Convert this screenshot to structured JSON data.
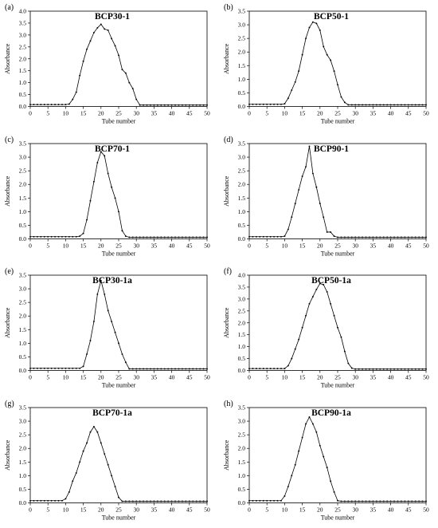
{
  "chart_data": [
    {
      "type": "line",
      "panel_label": "(a)",
      "title": "BCP30-1",
      "xlabel": "Tube number",
      "ylabel": "Absorbance",
      "xlim": [
        0,
        50
      ],
      "ylim": [
        0,
        4.0
      ],
      "x_ticks": [
        "0",
        "5",
        "10",
        "15",
        "20",
        "25",
        "30",
        "35",
        "40",
        "45",
        "50"
      ],
      "y_ticks": [
        "0.0",
        "0.5",
        "1.0",
        "1.5",
        "2.0",
        "2.5",
        "3.0",
        "3.5",
        "4.0"
      ],
      "x": [
        0,
        1,
        2,
        3,
        4,
        5,
        6,
        7,
        8,
        9,
        10,
        11,
        12,
        13,
        14,
        15,
        16,
        17,
        18,
        19,
        20,
        21,
        22,
        23,
        24,
        25,
        26,
        27,
        28,
        29,
        30,
        31,
        32,
        33,
        34,
        35,
        36,
        37,
        38,
        39,
        40,
        41,
        42,
        43,
        44,
        45,
        46,
        47,
        48,
        49,
        50
      ],
      "values": [
        0.08,
        0.08,
        0.08,
        0.08,
        0.08,
        0.08,
        0.08,
        0.08,
        0.08,
        0.08,
        0.08,
        0.1,
        0.3,
        0.6,
        1.3,
        1.9,
        2.4,
        2.75,
        3.1,
        3.3,
        3.45,
        3.25,
        3.2,
        2.85,
        2.55,
        2.15,
        1.55,
        1.4,
        1.0,
        0.75,
        0.3,
        0.06,
        0.06,
        0.06,
        0.06,
        0.06,
        0.06,
        0.06,
        0.06,
        0.06,
        0.06,
        0.06,
        0.06,
        0.06,
        0.06,
        0.06,
        0.06,
        0.06,
        0.06,
        0.06,
        0.06
      ]
    },
    {
      "type": "line",
      "panel_label": "(b)",
      "title": "BCP50-1",
      "xlabel": "Tube number",
      "ylabel": "Absorbance",
      "xlim": [
        0,
        50
      ],
      "ylim": [
        0,
        3.5
      ],
      "x_ticks": [
        "0",
        "5",
        "10",
        "15",
        "20",
        "25",
        "30",
        "35",
        "40",
        "45",
        "50"
      ],
      "y_ticks": [
        "0.0",
        "0.5",
        "1.0",
        "1.5",
        "2.0",
        "2.5",
        "3.0",
        "3.5"
      ],
      "x": [
        0,
        1,
        2,
        3,
        4,
        5,
        6,
        7,
        8,
        9,
        10,
        11,
        12,
        13,
        14,
        15,
        16,
        17,
        18,
        19,
        20,
        21,
        22,
        23,
        24,
        25,
        26,
        27,
        28,
        29,
        30,
        31,
        32,
        33,
        34,
        35,
        36,
        37,
        38,
        39,
        40,
        41,
        42,
        43,
        44,
        45,
        46,
        47,
        48,
        49,
        50
      ],
      "values": [
        0.08,
        0.08,
        0.08,
        0.08,
        0.08,
        0.08,
        0.08,
        0.08,
        0.08,
        0.08,
        0.1,
        0.3,
        0.6,
        0.9,
        1.3,
        1.9,
        2.5,
        2.9,
        3.1,
        3.05,
        2.8,
        2.2,
        1.9,
        1.7,
        1.3,
        0.8,
        0.35,
        0.15,
        0.06,
        0.06,
        0.06,
        0.06,
        0.06,
        0.06,
        0.06,
        0.06,
        0.06,
        0.06,
        0.06,
        0.06,
        0.06,
        0.06,
        0.06,
        0.06,
        0.06,
        0.06,
        0.06,
        0.06,
        0.06,
        0.06,
        0.06
      ]
    },
    {
      "type": "line",
      "panel_label": "(c)",
      "title": "BCP70-1",
      "xlabel": "Tube number",
      "ylabel": "Absorbance",
      "xlim": [
        0,
        50
      ],
      "ylim": [
        0,
        3.5
      ],
      "x_ticks": [
        "0",
        "5",
        "10",
        "15",
        "20",
        "25",
        "30",
        "35",
        "40",
        "45",
        "50"
      ],
      "y_ticks": [
        "0.0",
        "0.5",
        "1.0",
        "1.5",
        "2.0",
        "2.5",
        "3.0",
        "3.5"
      ],
      "x": [
        0,
        1,
        2,
        3,
        4,
        5,
        6,
        7,
        8,
        9,
        10,
        11,
        12,
        13,
        14,
        15,
        16,
        17,
        18,
        19,
        20,
        21,
        22,
        23,
        24,
        25,
        26,
        27,
        28,
        29,
        30,
        31,
        32,
        33,
        34,
        35,
        36,
        37,
        38,
        39,
        40,
        41,
        42,
        43,
        44,
        45,
        46,
        47,
        48,
        49,
        50
      ],
      "values": [
        0.08,
        0.08,
        0.08,
        0.08,
        0.08,
        0.08,
        0.08,
        0.08,
        0.08,
        0.08,
        0.08,
        0.08,
        0.08,
        0.08,
        0.1,
        0.2,
        0.7,
        1.4,
        2.1,
        2.8,
        3.2,
        3.05,
        2.4,
        1.9,
        1.5,
        1.0,
        0.3,
        0.1,
        0.06,
        0.06,
        0.06,
        0.06,
        0.06,
        0.06,
        0.06,
        0.06,
        0.06,
        0.06,
        0.06,
        0.06,
        0.06,
        0.06,
        0.06,
        0.06,
        0.06,
        0.06,
        0.06,
        0.06,
        0.06,
        0.06,
        0.06
      ]
    },
    {
      "type": "line",
      "panel_label": "(d)",
      "title": "BCP90-1",
      "xlabel": "Tube number",
      "ylabel": "Absorbance",
      "xlim": [
        0,
        50
      ],
      "ylim": [
        0,
        3.5
      ],
      "x_ticks": [
        "0",
        "5",
        "10",
        "15",
        "20",
        "25",
        "30",
        "35",
        "40",
        "45",
        "50"
      ],
      "y_ticks": [
        "0.0",
        "0.5",
        "1.0",
        "1.5",
        "2.0",
        "2.5",
        "3.0",
        "3.5"
      ],
      "x": [
        0,
        1,
        2,
        3,
        4,
        5,
        6,
        7,
        8,
        9,
        10,
        11,
        12,
        13,
        14,
        15,
        16,
        17,
        18,
        19,
        20,
        21,
        22,
        23,
        24,
        25,
        26,
        27,
        28,
        29,
        30,
        31,
        32,
        33,
        34,
        35,
        36,
        37,
        38,
        39,
        40,
        41,
        42,
        43,
        44,
        45,
        46,
        47,
        48,
        49,
        50
      ],
      "values": [
        0.08,
        0.08,
        0.08,
        0.08,
        0.08,
        0.08,
        0.08,
        0.08,
        0.08,
        0.08,
        0.1,
        0.35,
        0.8,
        1.3,
        1.8,
        2.3,
        2.65,
        3.4,
        2.4,
        1.9,
        1.3,
        0.8,
        0.25,
        0.25,
        0.1,
        0.06,
        0.06,
        0.06,
        0.06,
        0.06,
        0.06,
        0.06,
        0.06,
        0.06,
        0.06,
        0.06,
        0.06,
        0.06,
        0.06,
        0.06,
        0.06,
        0.06,
        0.06,
        0.06,
        0.06,
        0.06,
        0.06,
        0.06,
        0.06,
        0.06,
        0.06
      ]
    },
    {
      "type": "line",
      "panel_label": "(e)",
      "title": "BCP30-1a",
      "xlabel": "Tube number",
      "ylabel": "Absorbance",
      "xlim": [
        0,
        50
      ],
      "ylim": [
        0,
        3.5
      ],
      "x_ticks": [
        "0",
        "5",
        "10",
        "15",
        "20",
        "25",
        "30",
        "35",
        "40",
        "45",
        "50"
      ],
      "y_ticks": [
        "0.0",
        "0.5",
        "1.0",
        "1.5",
        "2.0",
        "2.5",
        "3.0",
        "3.5"
      ],
      "x": [
        0,
        1,
        2,
        3,
        4,
        5,
        6,
        7,
        8,
        9,
        10,
        11,
        12,
        13,
        14,
        15,
        16,
        17,
        18,
        19,
        20,
        21,
        22,
        23,
        24,
        25,
        26,
        27,
        28,
        29,
        30,
        31,
        32,
        33,
        34,
        35,
        36,
        37,
        38,
        39,
        40,
        41,
        42,
        43,
        44,
        45,
        46,
        47,
        48,
        49,
        50
      ],
      "values": [
        0.08,
        0.08,
        0.08,
        0.08,
        0.08,
        0.08,
        0.08,
        0.08,
        0.08,
        0.08,
        0.08,
        0.08,
        0.08,
        0.08,
        0.08,
        0.15,
        0.6,
        1.1,
        1.8,
        2.8,
        3.3,
        2.8,
        2.2,
        1.8,
        1.4,
        1.0,
        0.6,
        0.3,
        0.06,
        0.06,
        0.06,
        0.06,
        0.06,
        0.06,
        0.06,
        0.06,
        0.06,
        0.06,
        0.06,
        0.06,
        0.06,
        0.06,
        0.06,
        0.06,
        0.06,
        0.06,
        0.06,
        0.06,
        0.06,
        0.06,
        0.06
      ]
    },
    {
      "type": "line",
      "panel_label": "(f)",
      "title": "BCP50-1a",
      "xlabel": "Tube number",
      "ylabel": "Absorbance",
      "xlim": [
        0,
        50
      ],
      "ylim": [
        0,
        4.0
      ],
      "x_ticks": [
        "0",
        "5",
        "10",
        "15",
        "20",
        "25",
        "30",
        "35",
        "40",
        "45",
        "50"
      ],
      "y_ticks": [
        "0.0",
        "0.5",
        "1.0",
        "1.5",
        "2.0",
        "2.5",
        "3.0",
        "3.5",
        "4.0"
      ],
      "x": [
        0,
        1,
        2,
        3,
        4,
        5,
        6,
        7,
        8,
        9,
        10,
        11,
        12,
        13,
        14,
        15,
        16,
        17,
        18,
        19,
        20,
        21,
        22,
        23,
        24,
        25,
        26,
        27,
        28,
        29,
        30,
        31,
        32,
        33,
        34,
        35,
        36,
        37,
        38,
        39,
        40,
        41,
        42,
        43,
        44,
        45,
        46,
        47,
        48,
        49,
        50
      ],
      "values": [
        0.08,
        0.08,
        0.08,
        0.08,
        0.08,
        0.08,
        0.08,
        0.08,
        0.08,
        0.08,
        0.08,
        0.2,
        0.5,
        0.9,
        1.3,
        1.8,
        2.3,
        2.8,
        3.1,
        3.4,
        3.65,
        3.6,
        3.3,
        2.8,
        2.3,
        1.8,
        1.4,
        0.8,
        0.3,
        0.1,
        0.06,
        0.06,
        0.06,
        0.06,
        0.06,
        0.06,
        0.06,
        0.06,
        0.06,
        0.06,
        0.06,
        0.06,
        0.06,
        0.06,
        0.06,
        0.06,
        0.06,
        0.06,
        0.06,
        0.06,
        0.06
      ]
    },
    {
      "type": "line",
      "panel_label": "(g)",
      "title": "BCP70-1a",
      "xlabel": "Tube number",
      "ylabel": "Absorbance",
      "xlim": [
        0,
        50
      ],
      "ylim": [
        0,
        3.5
      ],
      "x_ticks": [
        "0",
        "5",
        "10",
        "15",
        "20",
        "25",
        "30",
        "35",
        "40",
        "45",
        "50"
      ],
      "y_ticks": [
        "0.0",
        "0.5",
        "1.0",
        "1.5",
        "2.0",
        "2.5",
        "3.0",
        "3.5"
      ],
      "x": [
        0,
        1,
        2,
        3,
        4,
        5,
        6,
        7,
        8,
        9,
        10,
        11,
        12,
        13,
        14,
        15,
        16,
        17,
        18,
        19,
        20,
        21,
        22,
        23,
        24,
        25,
        26,
        27,
        28,
        29,
        30,
        31,
        32,
        33,
        34,
        35,
        36,
        37,
        38,
        39,
        40,
        41,
        42,
        43,
        44,
        45,
        46,
        47,
        48,
        49,
        50
      ],
      "values": [
        0.08,
        0.08,
        0.08,
        0.08,
        0.08,
        0.08,
        0.08,
        0.08,
        0.08,
        0.08,
        0.15,
        0.4,
        0.8,
        1.1,
        1.5,
        1.9,
        2.2,
        2.6,
        2.8,
        2.6,
        2.2,
        1.8,
        1.4,
        1.0,
        0.6,
        0.2,
        0.06,
        0.06,
        0.06,
        0.06,
        0.06,
        0.06,
        0.06,
        0.06,
        0.06,
        0.06,
        0.06,
        0.06,
        0.06,
        0.06,
        0.06,
        0.06,
        0.06,
        0.06,
        0.06,
        0.06,
        0.06,
        0.06,
        0.06,
        0.06,
        0.06
      ]
    },
    {
      "type": "line",
      "panel_label": "(h)",
      "title": "BCP90-1a",
      "xlabel": "Tube number",
      "ylabel": "Absorbance",
      "xlim": [
        0,
        50
      ],
      "ylim": [
        0,
        3.5
      ],
      "x_ticks": [
        "0",
        "5",
        "10",
        "15",
        "20",
        "25",
        "30",
        "35",
        "40",
        "45",
        "50"
      ],
      "y_ticks": [
        "0.0",
        "0.5",
        "1.0",
        "1.5",
        "2.0",
        "2.5",
        "3.0",
        "3.5"
      ],
      "x": [
        0,
        1,
        2,
        3,
        4,
        5,
        6,
        7,
        8,
        9,
        10,
        11,
        12,
        13,
        14,
        15,
        16,
        17,
        18,
        19,
        20,
        21,
        22,
        23,
        24,
        25,
        26,
        27,
        28,
        29,
        30,
        31,
        32,
        33,
        34,
        35,
        36,
        37,
        38,
        39,
        40,
        41,
        42,
        43,
        44,
        45,
        46,
        47,
        48,
        49,
        50
      ],
      "values": [
        0.08,
        0.08,
        0.08,
        0.08,
        0.08,
        0.08,
        0.08,
        0.08,
        0.08,
        0.08,
        0.25,
        0.6,
        1.0,
        1.4,
        1.9,
        2.4,
        2.9,
        3.15,
        2.9,
        2.6,
        2.1,
        1.7,
        1.3,
        0.8,
        0.4,
        0.08,
        0.06,
        0.06,
        0.06,
        0.06,
        0.06,
        0.06,
        0.06,
        0.06,
        0.06,
        0.06,
        0.06,
        0.06,
        0.06,
        0.06,
        0.06,
        0.06,
        0.06,
        0.06,
        0.06,
        0.06,
        0.06,
        0.06,
        0.06,
        0.06,
        0.06
      ]
    }
  ]
}
